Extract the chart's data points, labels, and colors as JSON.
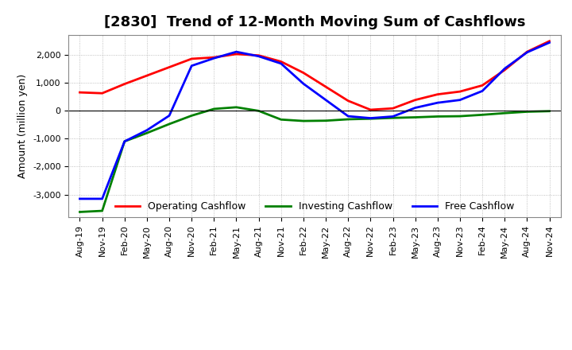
{
  "title": "[2830]  Trend of 12-Month Moving Sum of Cashflows",
  "ylabel": "Amount (million yen)",
  "x_labels": [
    "Aug-19",
    "Nov-19",
    "Feb-20",
    "May-20",
    "Aug-20",
    "Nov-20",
    "Feb-21",
    "May-21",
    "Aug-21",
    "Nov-21",
    "Feb-22",
    "May-22",
    "Aug-22",
    "Nov-22",
    "Feb-23",
    "May-23",
    "Aug-23",
    "Nov-23",
    "Feb-24",
    "May-24",
    "Aug-24",
    "Nov-24"
  ],
  "operating_cashflow": [
    650,
    620,
    950,
    1250,
    1550,
    1850,
    1900,
    2020,
    1970,
    1750,
    1350,
    850,
    350,
    30,
    80,
    380,
    580,
    680,
    900,
    1450,
    2100,
    2480
  ],
  "investing_cashflow": [
    -3620,
    -3580,
    -1100,
    -800,
    -480,
    -180,
    60,
    120,
    -10,
    -320,
    -370,
    -360,
    -310,
    -290,
    -260,
    -240,
    -210,
    -200,
    -150,
    -90,
    -40,
    -20
  ],
  "free_cashflow": [
    -3150,
    -3150,
    -1100,
    -700,
    -180,
    1600,
    1870,
    2100,
    1940,
    1680,
    960,
    380,
    -200,
    -270,
    -210,
    100,
    280,
    380,
    700,
    1500,
    2080,
    2430
  ],
  "operating_color": "#ff0000",
  "investing_color": "#008000",
  "free_color": "#0000ff",
  "ylim_min": -3800,
  "ylim_max": 2700,
  "yticks": [
    -3000,
    -2000,
    -1000,
    0,
    1000,
    2000
  ],
  "background_color": "#ffffff",
  "grid_color": "#b0b0b0",
  "title_fontsize": 13,
  "axis_label_fontsize": 9,
  "tick_fontsize": 8,
  "legend_fontsize": 9,
  "line_width": 2.0
}
